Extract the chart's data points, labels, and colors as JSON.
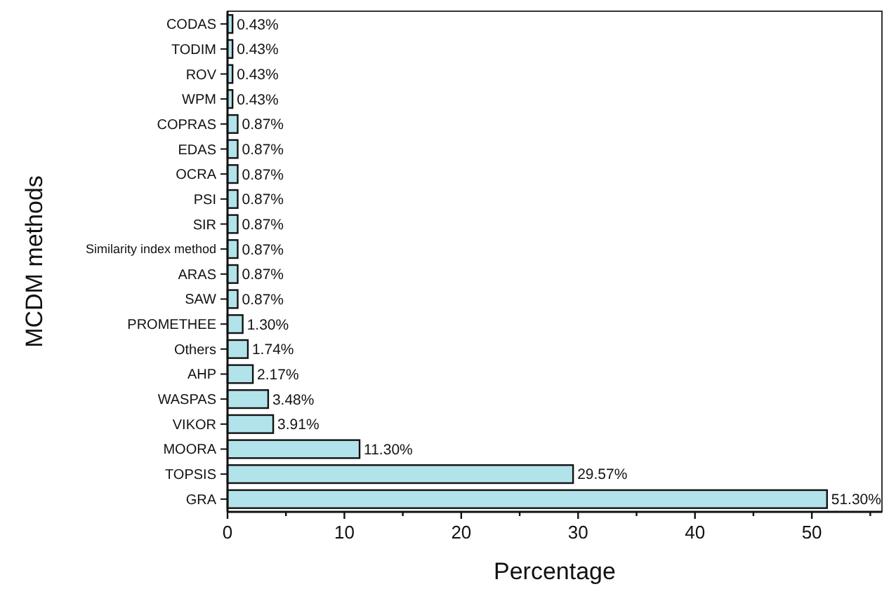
{
  "chart_data": {
    "type": "bar",
    "orientation": "horizontal",
    "xlabel": "Percentage",
    "ylabel": "MCDM methods",
    "categories": [
      "CODAS",
      "TODIM",
      "ROV",
      "WPM",
      "COPRAS",
      "EDAS",
      "OCRA",
      "PSI",
      "SIR",
      "Similarity index method",
      "ARAS",
      "SAW",
      "PROMETHEE",
      "Others",
      "AHP",
      "WASPAS",
      "VIKOR",
      "MOORA",
      "TOPSIS",
      "GRA"
    ],
    "values": [
      0.43,
      0.43,
      0.43,
      0.43,
      0.87,
      0.87,
      0.87,
      0.87,
      0.87,
      0.87,
      0.87,
      0.87,
      1.3,
      1.74,
      2.17,
      3.48,
      3.91,
      11.3,
      29.57,
      51.3
    ],
    "value_labels": [
      "0.43%",
      "0.43%",
      "0.43%",
      "0.43%",
      "0.87%",
      "0.87%",
      "0.87%",
      "0.87%",
      "0.87%",
      "0.87%",
      "0.87%",
      "0.87%",
      "1.30%",
      "1.74%",
      "2.17%",
      "3.48%",
      "3.91%",
      "11.30%",
      "29.57%",
      "51.30%"
    ],
    "color": "#b3e3ea",
    "xlim": [
      0,
      56
    ],
    "xticks": [
      0,
      {
        "value": 5,
        "label": null
      },
      10,
      {
        "value": 15,
        "label": null
      },
      20,
      {
        "value": 25,
        "label": null
      },
      30,
      {
        "value": 35,
        "label": null
      },
      40,
      {
        "value": 45,
        "label": null
      },
      50,
      {
        "value": 55,
        "label": null
      }
    ],
    "grid": false
  }
}
